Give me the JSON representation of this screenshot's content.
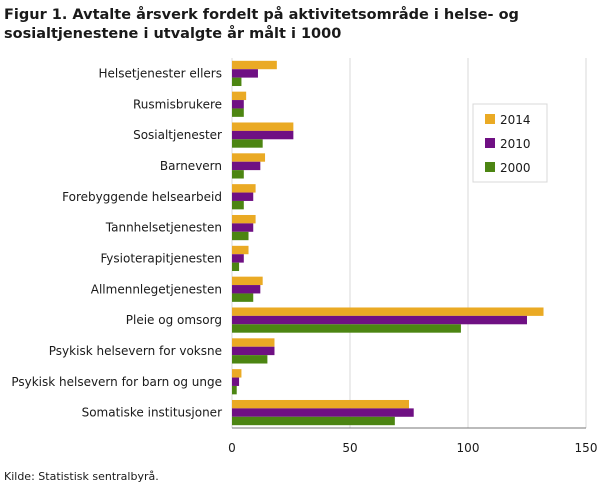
{
  "title": "Figur 1. Avtalte årsverk fordelt på aktivitetsområde i helse- og sosialtjenestene i utvalgte år målt i 1000",
  "source": "Kilde: Statistisk sentralbyrå.",
  "colors": {
    "2014": "#eaaa24",
    "2010": "#6f1083",
    "2000": "#4c8512",
    "grid": "#d8d8d8",
    "axis": "#777777"
  },
  "chart_data": {
    "type": "bar",
    "orientation": "horizontal",
    "categories": [
      "Helsetjenester ellers",
      "Rusmisbrukere",
      "Sosialtjenester",
      "Barnevern",
      "Forebyggende helsearbeid",
      "Tannhelsetjenesten",
      "Fysioterapitjenesten",
      "Allmennlegetjenesten",
      "Pleie og omsorg",
      "Psykisk helsevern for voksne",
      "Psykisk helsevern for barn og unge",
      "Somatiske institusjoner"
    ],
    "series": [
      {
        "name": "2014",
        "values": [
          19,
          6,
          26,
          14,
          10,
          10,
          7,
          13,
          132,
          18,
          4,
          75
        ]
      },
      {
        "name": "2010",
        "values": [
          11,
          5,
          26,
          12,
          9,
          9,
          5,
          12,
          125,
          18,
          3,
          77
        ]
      },
      {
        "name": "2000",
        "values": [
          4,
          5,
          13,
          5,
          5,
          7,
          3,
          9,
          97,
          15,
          2,
          69
        ]
      }
    ],
    "xlim": [
      0,
      150
    ],
    "xticks": [
      "0",
      "50",
      "100",
      "150"
    ],
    "grid": true,
    "legend_position": "right"
  }
}
